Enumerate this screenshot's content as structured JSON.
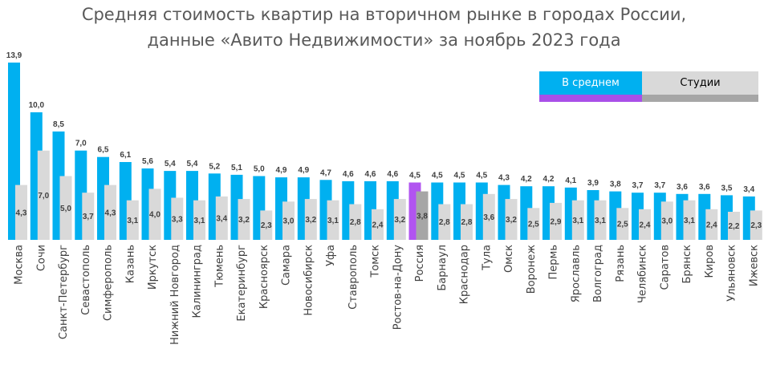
{
  "colors": {
    "average": "#00B0F0",
    "studio": "#D9D9D9",
    "highlight_average": "#B154F0",
    "highlight_studio": "#A6A6A6",
    "legend_average_strip": "#A94FE8",
    "legend_studio_strip": "#A6A6A6",
    "label_text": "#404040",
    "legend_average_text": "#ffffff",
    "legend_studio_text": "#000000"
  },
  "chart_data": {
    "type": "bar",
    "title_lines": [
      "Средняя стоимость квартир на вторичном рынке в городах России,",
      "данные «Авито Недвижимости» за ноябрь 2023 года"
    ],
    "xlabel": "",
    "ylabel": "",
    "ylim": [
      0,
      13.9
    ],
    "grid": false,
    "legend_position": "top-right",
    "highlight_category": "Россия",
    "categories": [
      "Москва",
      "Сочи",
      "Санкт-Петербург",
      "Севастополь",
      "Симферополь",
      "Казань",
      "Иркутск",
      "Нижний Новгород",
      "Калининград",
      "Тюмень",
      "Екатеринбург",
      "Красноярск",
      "Самара",
      "Новосибирск",
      "Уфа",
      "Ставрополь",
      "Томск",
      "Ростов-на-Дону",
      "Россия",
      "Барнаул",
      "Краснодар",
      "Тула",
      "Омск",
      "Воронеж",
      "Пермь",
      "Ярославль",
      "Волгоград",
      "Рязань",
      "Челябинск",
      "Саратов",
      "Брянск",
      "Киров",
      "Ульяновск",
      "Ижевск"
    ],
    "series": [
      {
        "name": "В среднем",
        "values": [
          13.9,
          10.0,
          8.5,
          7.0,
          6.5,
          6.1,
          5.6,
          5.4,
          5.4,
          5.2,
          5.1,
          5.0,
          4.9,
          4.9,
          4.7,
          4.6,
          4.6,
          4.6,
          4.5,
          4.5,
          4.5,
          4.5,
          4.3,
          4.2,
          4.2,
          4.1,
          3.9,
          3.8,
          3.7,
          3.7,
          3.6,
          3.6,
          3.5,
          3.4
        ],
        "labels": [
          "13,9",
          "10,0",
          "8,5",
          "7,0",
          "6,5",
          "6,1",
          "5,6",
          "5,4",
          "5,4",
          "5,2",
          "5,1",
          "5,0",
          "4,9",
          "4,9",
          "4,7",
          "4,6",
          "4,6",
          "4,6",
          "4,5",
          "4,5",
          "4,5",
          "4,5",
          "4,3",
          "4,2",
          "4,2",
          "4,1",
          "3,9",
          "3,8",
          "3,7",
          "3,7",
          "3,6",
          "3,6",
          "3,5",
          "3,4"
        ]
      },
      {
        "name": "Студии",
        "values": [
          4.3,
          7.0,
          5.0,
          3.7,
          4.3,
          3.1,
          4.0,
          3.3,
          3.1,
          3.4,
          3.2,
          2.3,
          3.0,
          3.2,
          3.1,
          2.8,
          2.4,
          3.2,
          3.8,
          2.8,
          2.8,
          3.6,
          3.2,
          2.5,
          2.9,
          3.1,
          3.1,
          2.5,
          2.4,
          3.0,
          3.1,
          2.4,
          2.2,
          2.3
        ],
        "labels": [
          "4,3",
          "7,0",
          "5,0",
          "3,7",
          "4,3",
          "3,1",
          "4,0",
          "3,3",
          "3,1",
          "3,4",
          "3,2",
          "2,3",
          "3,0",
          "3,2",
          "3,1",
          "2,8",
          "2,4",
          "3,2",
          "3,8",
          "2,8",
          "2,8",
          "3,6",
          "3,2",
          "2,5",
          "2,9",
          "3,1",
          "3,1",
          "2,5",
          "2,4",
          "3,0",
          "3,1",
          "2,4",
          "2,2",
          "2,3"
        ]
      }
    ]
  }
}
